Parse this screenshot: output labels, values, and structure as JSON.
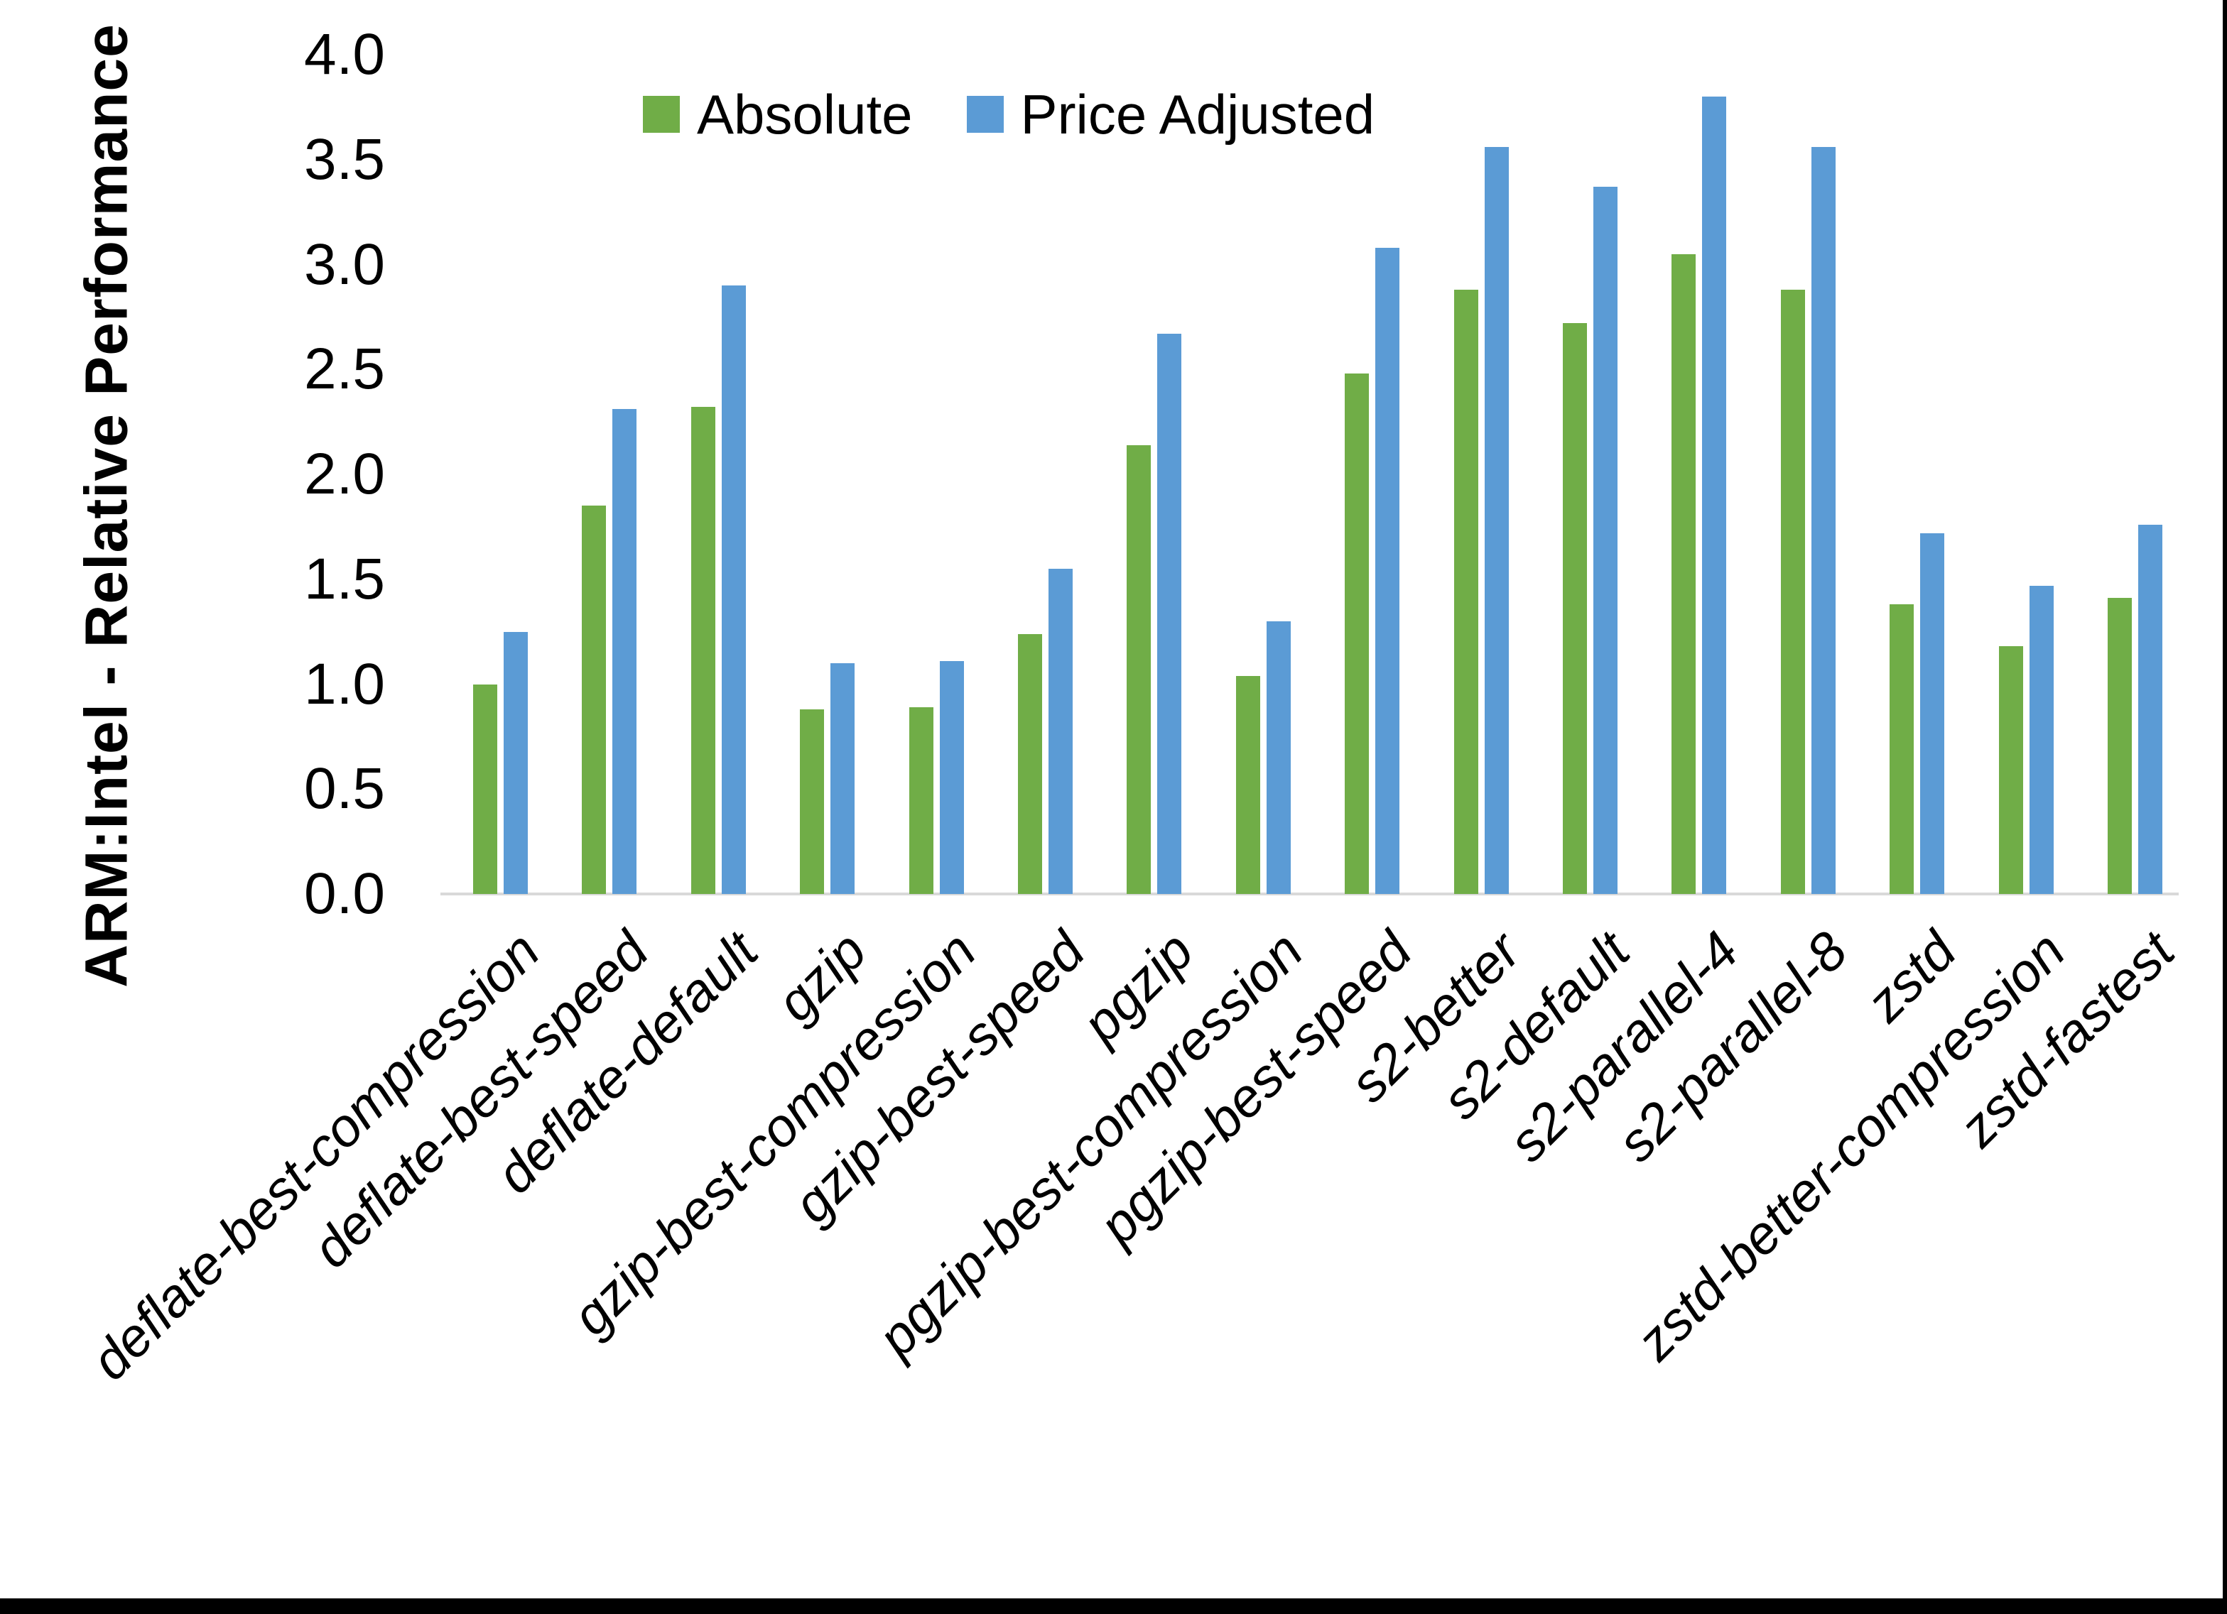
{
  "chart_data": {
    "type": "bar",
    "title": "",
    "xlabel": "",
    "ylabel": "ARM:Intel - Relative Performance",
    "ylim": [
      0,
      4
    ],
    "ytick_step": 0.5,
    "yticks": [
      "4.0",
      "3.5",
      "3.0",
      "2.5",
      "2.0",
      "1.5",
      "1.0",
      "0.5",
      "0.0"
    ],
    "grid": false,
    "legend_position": "top-center",
    "categories": [
      "deflate-best-compression",
      "deflate-best-speed",
      "deflate-default",
      "gzip",
      "gzip-best-compression",
      "gzip-best-speed",
      "pgzip",
      "pgzip-best-compression",
      "pgzip-best-speed",
      "s2-better",
      "s2-default",
      "s2-parallel-4",
      "s2-parallel-8",
      "zstd",
      "zstd-better-compression",
      "zstd-fastest"
    ],
    "series": [
      {
        "name": "Absolute",
        "color": "#70AD47",
        "values": [
          1.0,
          1.85,
          2.32,
          0.88,
          0.89,
          1.24,
          2.14,
          1.04,
          2.48,
          2.88,
          2.72,
          3.05,
          2.88,
          1.38,
          1.18,
          1.41
        ]
      },
      {
        "name": "Price Adjusted",
        "color": "#5B9BD5",
        "values": [
          1.25,
          2.31,
          2.9,
          1.1,
          1.11,
          1.55,
          2.67,
          1.3,
          3.08,
          3.56,
          3.37,
          3.8,
          3.56,
          1.72,
          1.47,
          1.76
        ]
      }
    ]
  },
  "colors": {
    "background": "#FFFFFF",
    "axis_line": "#D9D9D9",
    "text": "#000000",
    "border": "#000000"
  }
}
